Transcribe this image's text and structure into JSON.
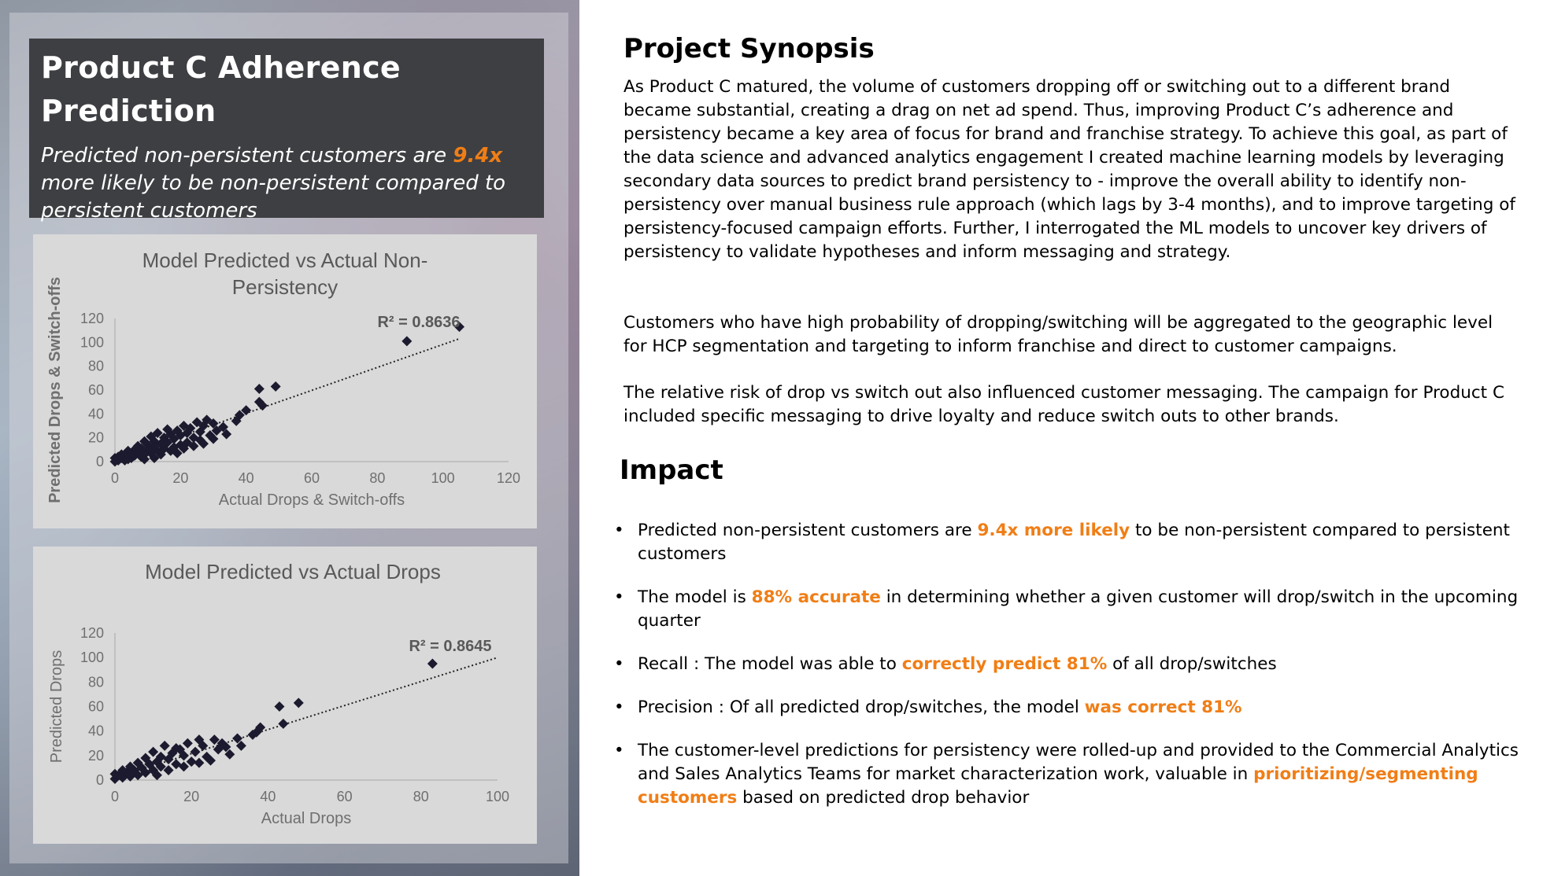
{
  "left": {
    "title": "Product C Adherence Prediction",
    "subtitle_pre": "Predicted non-persistent customers are ",
    "subtitle_hl": "9.4x",
    "subtitle_post": " more likely to be non-persistent compared to persistent customers"
  },
  "right": {
    "synopsis_heading": "Project Synopsis",
    "synopsis_p1": "As Product C matured, the volume of customers dropping off or switching out to a different brand became substantial, creating a drag on net ad spend. Thus, improving Product C’s adherence and persistency became a key area of focus for brand and franchise strategy. To achieve this goal, as part of the data science and advanced analytics engagement I created machine learning models by leveraging secondary data sources to predict brand persistency to - improve the overall ability to identify non-persistency over manual business rule approach (which lags by 3-4 months), and to improve targeting of persistency-focused campaign efforts. Further, I interrogated the ML models to uncover key drivers of persistency to validate hypotheses and inform messaging and strategy.",
    "synopsis_p2": "Customers who have high probability of dropping/switching will be aggregated to the geographic level for HCP segmentation and targeting to inform franchise and direct to customer campaigns.",
    "synopsis_p3": "The relative risk of drop vs switch out also influenced customer messaging. The campaign for Product C included specific messaging to drive loyalty and reduce switch outs to other brands.",
    "impact_heading": "Impact",
    "bullet_char": "•",
    "bullets": [
      {
        "pre": "Predicted non-persistent customers are ",
        "hl": "9.4x more likely",
        "post": " to be non-persistent compared to persistent customers"
      },
      {
        "pre": "The model is ",
        "hl": "88% accurate",
        "post": " in determining whether a given customer will drop/switch in the upcoming quarter"
      },
      {
        "pre": "Recall : The model was able to ",
        "hl": "correctly predict 81%",
        "post": " of all drop/switches"
      },
      {
        "pre": "Precision : Of all predicted drop/switches, the model ",
        "hl": "was correct 81%",
        "post": ""
      },
      {
        "pre": "The customer-level predictions for persistency were rolled-up and provided to the Commercial Analytics and Sales Analytics Teams for market characterization work, valuable in ",
        "hl": "prioritizing/segmenting customers",
        "post": " based on predicted drop behavior"
      }
    ]
  },
  "colors": {
    "highlight": "#f07e16",
    "title_box": "#3e3f42",
    "card": "#d9d9d9",
    "marker": "#1c1a2e"
  },
  "chart_data": [
    {
      "type": "scatter",
      "title": "Model Predicted vs Actual Non-Persistency",
      "title_lines": [
        "Model Predicted vs Actual Non-",
        "Persistency"
      ],
      "xlabel": "Actual Drops & Switch-offs",
      "ylabel": "Predicted Drops & Switch-offs",
      "xlim": [
        0,
        120
      ],
      "ylim": [
        0,
        120
      ],
      "xticks": [
        0,
        20,
        40,
        60,
        80,
        100,
        120
      ],
      "yticks": [
        0,
        20,
        40,
        60,
        80,
        100,
        120
      ],
      "annotation": "R² = 0.8636",
      "trendline": {
        "style": "dotted",
        "x": [
          0,
          105
        ],
        "y": [
          2,
          103
        ]
      },
      "points": [
        {
          "x": 105,
          "y": 113
        },
        {
          "x": 89,
          "y": 101
        },
        {
          "x": 49,
          "y": 63
        },
        {
          "x": 44,
          "y": 61
        },
        {
          "x": 44,
          "y": 50
        },
        {
          "x": 45,
          "y": 47
        },
        {
          "x": 40,
          "y": 43
        },
        {
          "x": 38,
          "y": 39
        },
        {
          "x": 37,
          "y": 34
        },
        {
          "x": 33,
          "y": 29
        },
        {
          "x": 34,
          "y": 23
        },
        {
          "x": 31,
          "y": 26
        },
        {
          "x": 30,
          "y": 32
        },
        {
          "x": 28,
          "y": 35
        },
        {
          "x": 27,
          "y": 30
        },
        {
          "x": 29,
          "y": 22
        },
        {
          "x": 26,
          "y": 25
        },
        {
          "x": 25,
          "y": 33
        },
        {
          "x": 24,
          "y": 20
        },
        {
          "x": 23,
          "y": 28
        },
        {
          "x": 22,
          "y": 24
        },
        {
          "x": 22,
          "y": 16
        },
        {
          "x": 21,
          "y": 30
        },
        {
          "x": 20,
          "y": 22
        },
        {
          "x": 20,
          "y": 14
        },
        {
          "x": 19,
          "y": 26
        },
        {
          "x": 18,
          "y": 19
        },
        {
          "x": 18,
          "y": 12
        },
        {
          "x": 17,
          "y": 23
        },
        {
          "x": 16,
          "y": 16
        },
        {
          "x": 16,
          "y": 27
        },
        {
          "x": 15,
          "y": 11
        },
        {
          "x": 15,
          "y": 20
        },
        {
          "x": 14,
          "y": 15
        },
        {
          "x": 13,
          "y": 24
        },
        {
          "x": 13,
          "y": 9
        },
        {
          "x": 12,
          "y": 17
        },
        {
          "x": 12,
          "y": 12
        },
        {
          "x": 11,
          "y": 21
        },
        {
          "x": 11,
          "y": 7
        },
        {
          "x": 10,
          "y": 14
        },
        {
          "x": 10,
          "y": 10
        },
        {
          "x": 9,
          "y": 17
        },
        {
          "x": 9,
          "y": 6
        },
        {
          "x": 8,
          "y": 11
        },
        {
          "x": 8,
          "y": 4
        },
        {
          "x": 7,
          "y": 13
        },
        {
          "x": 7,
          "y": 8
        },
        {
          "x": 6,
          "y": 5
        },
        {
          "x": 6,
          "y": 10
        },
        {
          "x": 5,
          "y": 3
        },
        {
          "x": 5,
          "y": 7
        },
        {
          "x": 4,
          "y": 9
        },
        {
          "x": 4,
          "y": 2
        },
        {
          "x": 3,
          "y": 5
        },
        {
          "x": 3,
          "y": 1
        },
        {
          "x": 2,
          "y": 3
        },
        {
          "x": 2,
          "y": 6
        },
        {
          "x": 1,
          "y": 1
        },
        {
          "x": 1,
          "y": 4
        },
        {
          "x": 0,
          "y": 0
        },
        {
          "x": 0,
          "y": 3
        },
        {
          "x": 14,
          "y": 6
        },
        {
          "x": 17,
          "y": 9
        },
        {
          "x": 19,
          "y": 7
        },
        {
          "x": 24,
          "y": 13
        },
        {
          "x": 26,
          "y": 18
        },
        {
          "x": 30,
          "y": 19
        },
        {
          "x": 12,
          "y": 3
        },
        {
          "x": 9,
          "y": 2
        },
        {
          "x": 21,
          "y": 11
        },
        {
          "x": 27,
          "y": 15
        }
      ]
    },
    {
      "type": "scatter",
      "title": "Model Predicted vs Actual Drops",
      "title_lines": [
        "Model Predicted vs Actual Drops"
      ],
      "xlabel": "Actual Drops",
      "ylabel": "Predicted Drops",
      "xlim": [
        0,
        100
      ],
      "ylim": [
        0,
        120
      ],
      "xticks": [
        0,
        20,
        40,
        60,
        80,
        100
      ],
      "yticks": [
        0,
        20,
        40,
        60,
        80,
        100,
        120
      ],
      "annotation": "R² = 0.8645",
      "trendline": {
        "style": "dotted",
        "x": [
          0,
          100
        ],
        "y": [
          2,
          100
        ]
      },
      "points": [
        {
          "x": 83,
          "y": 95
        },
        {
          "x": 48,
          "y": 63
        },
        {
          "x": 43,
          "y": 60
        },
        {
          "x": 44,
          "y": 46
        },
        {
          "x": 38,
          "y": 43
        },
        {
          "x": 36,
          "y": 37
        },
        {
          "x": 37,
          "y": 39
        },
        {
          "x": 33,
          "y": 28
        },
        {
          "x": 32,
          "y": 34
        },
        {
          "x": 30,
          "y": 21
        },
        {
          "x": 28,
          "y": 30
        },
        {
          "x": 27,
          "y": 25
        },
        {
          "x": 26,
          "y": 33
        },
        {
          "x": 24,
          "y": 19
        },
        {
          "x": 23,
          "y": 28
        },
        {
          "x": 22,
          "y": 33
        },
        {
          "x": 21,
          "y": 23
        },
        {
          "x": 20,
          "y": 15
        },
        {
          "x": 19,
          "y": 30
        },
        {
          "x": 18,
          "y": 20
        },
        {
          "x": 17,
          "y": 25
        },
        {
          "x": 16,
          "y": 13
        },
        {
          "x": 15,
          "y": 22
        },
        {
          "x": 14,
          "y": 17
        },
        {
          "x": 13,
          "y": 28
        },
        {
          "x": 12,
          "y": 11
        },
        {
          "x": 12,
          "y": 19
        },
        {
          "x": 11,
          "y": 15
        },
        {
          "x": 10,
          "y": 23
        },
        {
          "x": 10,
          "y": 8
        },
        {
          "x": 9,
          "y": 13
        },
        {
          "x": 8,
          "y": 18
        },
        {
          "x": 8,
          "y": 6
        },
        {
          "x": 7,
          "y": 10
        },
        {
          "x": 6,
          "y": 14
        },
        {
          "x": 6,
          "y": 4
        },
        {
          "x": 5,
          "y": 8
        },
        {
          "x": 4,
          "y": 11
        },
        {
          "x": 4,
          "y": 3
        },
        {
          "x": 3,
          "y": 6
        },
        {
          "x": 2,
          "y": 2
        },
        {
          "x": 2,
          "y": 8
        },
        {
          "x": 1,
          "y": 4
        },
        {
          "x": 0,
          "y": 1
        },
        {
          "x": 0,
          "y": 5
        },
        {
          "x": 14,
          "y": 8
        },
        {
          "x": 18,
          "y": 11
        },
        {
          "x": 22,
          "y": 14
        },
        {
          "x": 25,
          "y": 16
        },
        {
          "x": 29,
          "y": 27
        },
        {
          "x": 11,
          "y": 4
        },
        {
          "x": 16,
          "y": 26
        }
      ]
    }
  ]
}
